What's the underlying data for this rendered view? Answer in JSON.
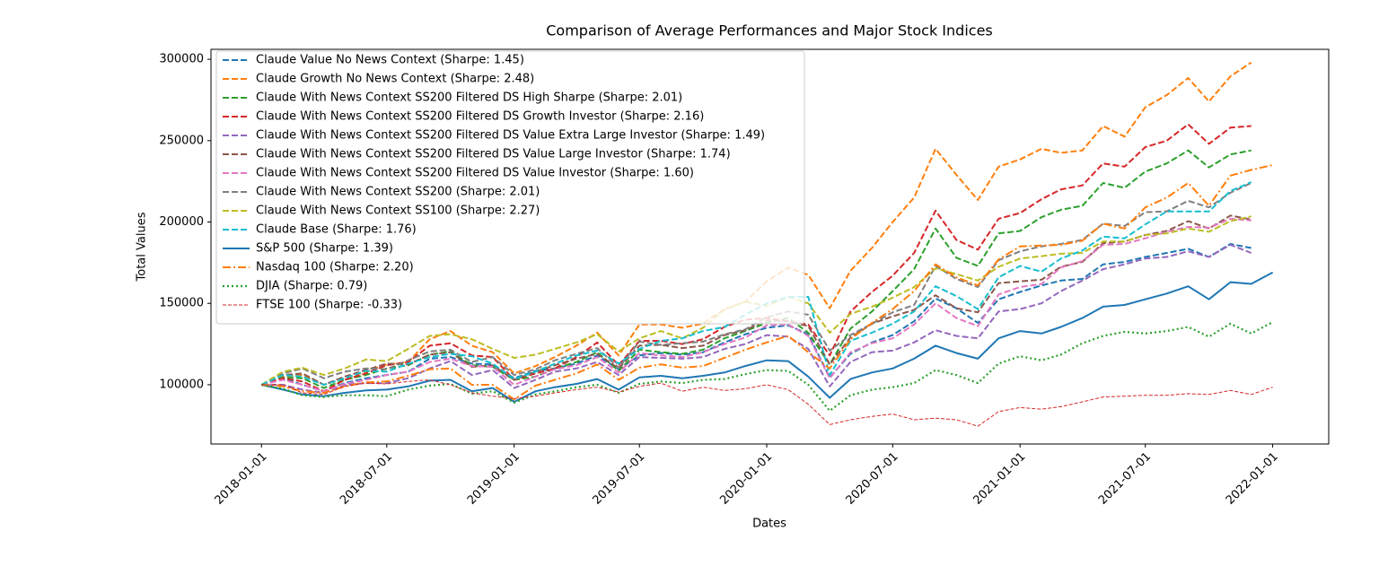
{
  "chart_data": {
    "type": "line",
    "title": "Comparison of Average Performances and Major Stock Indices",
    "xlabel": "Dates",
    "ylabel": "Total Values",
    "x": [
      "2018-01-01",
      "2018-02-01",
      "2018-03-01",
      "2018-04-01",
      "2018-05-01",
      "2018-06-01",
      "2018-07-01",
      "2018-08-01",
      "2018-09-01",
      "2018-10-01",
      "2018-11-01",
      "2018-12-01",
      "2019-01-01",
      "2019-02-01",
      "2019-03-01",
      "2019-04-01",
      "2019-05-01",
      "2019-06-01",
      "2019-07-01",
      "2019-08-01",
      "2019-09-01",
      "2019-10-01",
      "2019-11-01",
      "2019-12-01",
      "2020-01-01",
      "2020-02-01",
      "2020-03-01",
      "2020-04-01",
      "2020-05-01",
      "2020-06-01",
      "2020-07-01",
      "2020-08-01",
      "2020-09-01",
      "2020-10-01",
      "2020-11-01",
      "2020-12-01",
      "2021-01-01",
      "2021-02-01",
      "2021-03-01",
      "2021-04-01",
      "2021-05-01",
      "2021-06-01",
      "2021-07-01",
      "2021-08-01",
      "2021-09-01",
      "2021-10-01",
      "2021-11-01",
      "2021-12-01",
      "2022-01-01"
    ],
    "xlim": [
      "2017-10-20",
      "2022-03-23"
    ],
    "xticks": [
      "2018-01-01",
      "2018-07-01",
      "2019-01-01",
      "2019-07-01",
      "2020-01-01",
      "2020-07-01",
      "2021-01-01",
      "2021-07-01",
      "2022-01-01"
    ],
    "ylim": [
      63600,
      306100
    ],
    "yticks": [
      100000,
      150000,
      200000,
      250000,
      300000
    ],
    "legend": "upper left",
    "series": [
      {
        "name": "Claude Value No News Context (Sharpe: 1.45)",
        "color": "#1f77b4",
        "linestyle": "dashed",
        "values": [
          100000,
          104000,
          100000,
          96000,
          101000,
          104000,
          106000,
          108000,
          116000,
          117000,
          113000,
          112500,
          104000,
          108500,
          110000,
          113000,
          118000,
          109500,
          118000,
          119500,
          118500,
          120000,
          126000,
          131000,
          135000,
          136500,
          131000,
          104500,
          119000,
          126000,
          130500,
          139000,
          153000,
          147000,
          138000,
          152500,
          157000,
          161000,
          164000,
          165000,
          174000,
          175500,
          178500,
          181000,
          183500,
          178500,
          186500,
          184000,
          null
        ]
      },
      {
        "name": "Claude Growth No News Context (Sharpe: 2.48)",
        "color": "#ff7f0e",
        "linestyle": "dashed",
        "values": [
          100000,
          105000,
          106000,
          100000,
          104000,
          108000,
          112500,
          114000,
          128000,
          133000,
          124000,
          120000,
          107000,
          111500,
          117000,
          124000,
          132000,
          118000,
          137000,
          137000,
          135000,
          137500,
          146500,
          151000,
          163500,
          172000,
          167500,
          147000,
          170000,
          184000,
          200000,
          215000,
          245000,
          229000,
          213500,
          234000,
          238500,
          245000,
          242500,
          244000,
          259000,
          252500,
          270500,
          278000,
          288500,
          274000,
          289500,
          298000,
          null
        ]
      },
      {
        "name": "Claude With News Context SS200 Filtered DS High Sharpe (Sharpe: 2.01)",
        "color": "#2ca02c",
        "linestyle": "dashed",
        "values": [
          100000,
          104500,
          104000,
          98000,
          103000,
          106000,
          110000,
          112000,
          118500,
          120500,
          112000,
          111000,
          103000,
          105000,
          110000,
          114000,
          120000,
          108500,
          121500,
          120000,
          119000,
          121500,
          128500,
          133000,
          138000,
          141000,
          132000,
          112500,
          134500,
          145000,
          157500,
          171000,
          196000,
          178000,
          173000,
          193000,
          194500,
          203000,
          207500,
          210000,
          224000,
          221000,
          231000,
          236000,
          244000,
          233500,
          241500,
          244000,
          null
        ]
      },
      {
        "name": "Claude With News Context SS200 Filtered DS Growth Investor (Sharpe: 2.16)",
        "color": "#d62728",
        "linestyle": "dashed",
        "values": [
          100000,
          104000,
          102000,
          96000,
          103000,
          107000,
          112000,
          114000,
          124000,
          125500,
          118000,
          117000,
          103000,
          107000,
          110000,
          117000,
          126000,
          112000,
          127000,
          127000,
          125000,
          128000,
          135500,
          140000,
          141000,
          139000,
          137000,
          118000,
          145000,
          157000,
          167000,
          181000,
          207000,
          189000,
          183000,
          202000,
          205500,
          214000,
          220000,
          222500,
          236000,
          234000,
          246000,
          250000,
          260000,
          248000,
          258000,
          259000,
          null
        ]
      },
      {
        "name": "Claude With News Context SS200 Filtered DS Value Extra Large Investor (Sharpe: 1.49)",
        "color": "#9467bd",
        "linestyle": "dashed",
        "values": [
          100000,
          100000,
          97000,
          95000,
          100000,
          101000,
          101000,
          104000,
          110000,
          114500,
          106000,
          109000,
          98000,
          103000,
          108000,
          110000,
          114000,
          106000,
          117000,
          116500,
          116000,
          117000,
          122000,
          125000,
          130500,
          129500,
          122000,
          99000,
          114000,
          120000,
          121000,
          126000,
          133500,
          130000,
          128500,
          145000,
          146500,
          150000,
          157500,
          164000,
          171000,
          174000,
          177500,
          178500,
          182000,
          178500,
          186000,
          181000,
          null
        ]
      },
      {
        "name": "Claude With News Context SS200 Filtered DS Value Large Investor (Sharpe: 1.74)",
        "color": "#8c564b",
        "linestyle": "dashed",
        "values": [
          100000,
          106000,
          107000,
          100000,
          105000,
          109000,
          113000,
          112500,
          118500,
          120000,
          111000,
          112000,
          103000,
          108000,
          112000,
          116000,
          119000,
          110000,
          124000,
          124500,
          122500,
          124000,
          130500,
          133500,
          139500,
          139000,
          136000,
          112500,
          129000,
          137500,
          142000,
          146000,
          155000,
          147000,
          144500,
          162500,
          163500,
          164500,
          172500,
          175500,
          187000,
          188000,
          192000,
          194500,
          200500,
          196000,
          204000,
          201500,
          null
        ]
      },
      {
        "name": "Claude With News Context SS200 Filtered DS Value Investor (Sharpe: 1.60)",
        "color": "#e377c2",
        "linestyle": "dashed",
        "values": [
          100000,
          103000,
          100000,
          96000,
          100500,
          103000,
          106000,
          108000,
          114000,
          116000,
          111500,
          111000,
          100000,
          105000,
          109500,
          112000,
          117000,
          107500,
          119500,
          118000,
          117000,
          120000,
          125000,
          129000,
          136500,
          137000,
          130000,
          104000,
          120000,
          125500,
          128500,
          137000,
          150000,
          141000,
          136000,
          155500,
          160000,
          162000,
          172000,
          176000,
          186000,
          186500,
          190000,
          194000,
          197000,
          196500,
          202000,
          201000,
          null
        ]
      },
      {
        "name": "Claude With News Context SS200 (Sharpe: 2.01)",
        "color": "#7f7f7f",
        "linestyle": "dashed",
        "values": [
          100000,
          107000,
          110000,
          104000,
          108000,
          110000,
          109500,
          115000,
          120500,
          121500,
          114000,
          117000,
          106000,
          109500,
          115000,
          119000,
          122500,
          110500,
          126500,
          124500,
          125500,
          126500,
          131000,
          134000,
          141500,
          145000,
          143000,
          121000,
          130500,
          137500,
          144500,
          149000,
          173000,
          165000,
          160000,
          176500,
          182000,
          185000,
          186500,
          189000,
          199000,
          197500,
          206000,
          206500,
          213000,
          209000,
          218000,
          224000,
          null
        ]
      },
      {
        "name": "Claude With News Context SS100 (Sharpe: 2.27)",
        "color": "#bcbd22",
        "linestyle": "dashed",
        "values": [
          100000,
          108000,
          110500,
          106000,
          110000,
          115500,
          114500,
          122000,
          130000,
          131000,
          128000,
          122000,
          116500,
          118500,
          122000,
          126000,
          131000,
          120500,
          128500,
          133000,
          128500,
          135000,
          146000,
          151000,
          148500,
          154000,
          150000,
          132000,
          143500,
          148000,
          153500,
          160000,
          171500,
          168000,
          164000,
          172500,
          177500,
          179000,
          180500,
          181000,
          188000,
          188000,
          192000,
          193000,
          196000,
          194000,
          200500,
          203500,
          null
        ]
      },
      {
        "name": "Claude Base (Sharpe: 1.76)",
        "color": "#17becf",
        "linestyle": "dashed",
        "values": [
          100000,
          106000,
          105000,
          100000,
          104000,
          108500,
          108000,
          113000,
          117000,
          119000,
          117500,
          113000,
          103500,
          108000,
          113000,
          118000,
          121000,
          113000,
          122000,
          127000,
          128500,
          133000,
          135500,
          143000,
          150000,
          154000,
          154000,
          106000,
          127000,
          132000,
          137500,
          145000,
          160500,
          154500,
          146500,
          166000,
          173000,
          169500,
          177500,
          182500,
          191000,
          190000,
          198500,
          206500,
          206500,
          206500,
          219000,
          224500,
          null
        ]
      },
      {
        "name": "S&P 500 (Sharpe: 1.39)",
        "color": "#1f77b4",
        "linestyle": "solid",
        "values": [
          100000,
          97000,
          94000,
          93000,
          95000,
          96500,
          97000,
          99000,
          102500,
          103000,
          96000,
          98000,
          89500,
          96000,
          98500,
          100500,
          103500,
          97000,
          104500,
          105500,
          104000,
          105500,
          107500,
          111500,
          115000,
          114500,
          105000,
          92000,
          103500,
          107500,
          110000,
          116000,
          124000,
          119500,
          116000,
          128500,
          133000,
          131500,
          135500,
          141000,
          148000,
          149000,
          152500,
          156000,
          160500,
          152500,
          163000,
          162000,
          169000
        ]
      },
      {
        "name": "Nasdaq 100 (Sharpe: 2.20)",
        "color": "#ff7f0e",
        "linestyle": "dashdot",
        "values": [
          100000,
          99000,
          96000,
          95000,
          99000,
          101500,
          102000,
          105500,
          109500,
          110000,
          100000,
          100000,
          91000,
          99500,
          103000,
          107000,
          112500,
          103000,
          110500,
          112500,
          110500,
          111500,
          116500,
          121500,
          126000,
          130000,
          120000,
          110000,
          128000,
          138000,
          146500,
          157500,
          174000,
          166000,
          161000,
          177000,
          185000,
          185500,
          186000,
          188500,
          199000,
          196000,
          209000,
          215000,
          224000,
          210000,
          228500,
          232000,
          235000
        ]
      },
      {
        "name": "DJIA (Sharpe: 0.79)",
        "color": "#2ca02c",
        "linestyle": "dotted",
        "values": [
          100000,
          97500,
          93500,
          92500,
          93500,
          93500,
          93000,
          97000,
          99500,
          100500,
          94500,
          96000,
          89000,
          94000,
          96000,
          98500,
          100000,
          95000,
          100500,
          102000,
          101000,
          103000,
          103500,
          106500,
          109000,
          108500,
          100000,
          84000,
          93500,
          97000,
          98500,
          101000,
          109000,
          106000,
          101000,
          113000,
          117500,
          115000,
          118500,
          125500,
          130000,
          132500,
          131500,
          133000,
          135500,
          129500,
          137500,
          131500,
          138500
        ]
      },
      {
        "name": "FTSE 100 (Sharpe: -0.33)",
        "color": "#d62728",
        "linestyle": "thin-dashed",
        "values": [
          100000,
          100000,
          95000,
          94000,
          99000,
          101000,
          100500,
          102000,
          103000,
          100000,
          95000,
          93000,
          91500,
          93000,
          95000,
          97000,
          98500,
          95500,
          99000,
          101000,
          96000,
          98500,
          96500,
          97500,
          100000,
          97000,
          88000,
          75500,
          78500,
          80500,
          82000,
          78500,
          79500,
          78500,
          74500,
          83500,
          86000,
          85000,
          86500,
          89500,
          92500,
          93000,
          93500,
          93500,
          94500,
          94000,
          96500,
          94000,
          98500
        ]
      }
    ]
  }
}
